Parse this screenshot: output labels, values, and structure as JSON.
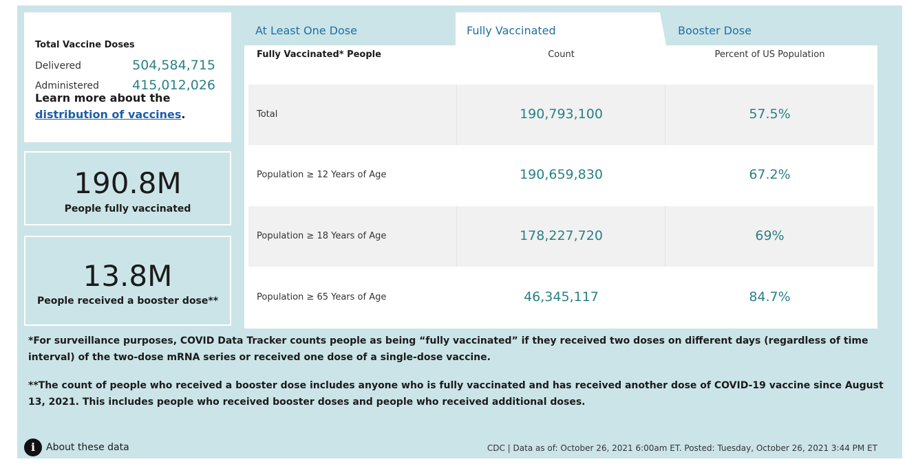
{
  "summary": {
    "title": "Total Vaccine Doses",
    "delivered_label": "Delivered",
    "delivered_value": "504,584,715",
    "administered_label": "Administered",
    "administered_value": "415,012,026",
    "learn_prefix": "Learn more about the",
    "learn_link": "distribution of vaccines",
    "learn_suffix": "."
  },
  "stats": [
    {
      "big": "190.8M",
      "caption": "People fully vaccinated"
    },
    {
      "big": "13.8M",
      "caption": "People received a booster dose**"
    }
  ],
  "tabs": [
    {
      "label": "At Least One Dose",
      "active": false
    },
    {
      "label": "Fully Vaccinated",
      "active": true
    },
    {
      "label": "Booster Dose",
      "active": false
    }
  ],
  "table": {
    "headers": [
      "Fully Vaccinated* People",
      "Count",
      "Percent of US Population"
    ],
    "rows": [
      {
        "label": "Total",
        "count": "190,793,100",
        "percent": "57.5%"
      },
      {
        "label": "Population ≥ 12 Years of Age",
        "count": "190,659,830",
        "percent": "67.2%"
      },
      {
        "label": "Population ≥ 18 Years of Age",
        "count": "178,227,720",
        "percent": "69%"
      },
      {
        "label": "Population ≥ 65 Years of Age",
        "count": "46,345,117",
        "percent": "84.7%"
      }
    ]
  },
  "notes": [
    "*For surveillance purposes, COVID Data Tracker counts people as being “fully vaccinated” if they received two doses on different days (regardless of time interval) of the two-dose mRNA series or received one dose of a single-dose vaccine.",
    "**The count of people who received a booster dose includes anyone who is fully vaccinated and has received another dose of COVID-19 vaccine since August 13, 2021. This includes people who received booster doses and people who received additional doses."
  ],
  "about": {
    "icon": "info-icon",
    "glyph": "i",
    "label": "About these data"
  },
  "footer": "CDC | Data as of: October 26, 2021 6:00am ET. Posted: Tuesday, October 26, 2021 3:44 PM ET",
  "colors": {
    "panel": "#cbe4e8",
    "accent": "#2a7f86",
    "link": "#1f5fa8",
    "tab_text": "#1f6fa2"
  }
}
